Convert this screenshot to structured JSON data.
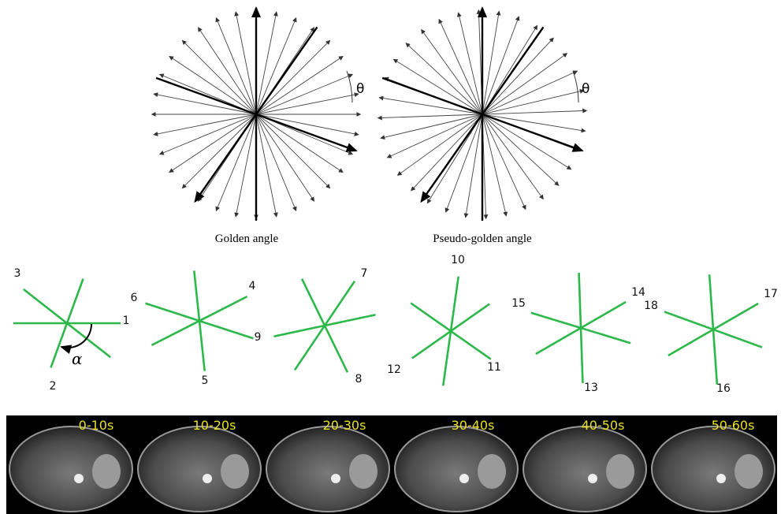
{
  "panels": [
    {
      "theta": "θ",
      "caption": "Golden angle"
    },
    {
      "theta": "θ",
      "caption": "Pseudo-golden angle"
    }
  ],
  "spoke_labels": [
    "1",
    "2",
    "3",
    "4",
    "5",
    "6",
    "7",
    "8",
    "9",
    "10",
    "11",
    "12",
    "13",
    "14",
    "15",
    "16",
    "17",
    "18"
  ],
  "alpha": "α",
  "time_labels": [
    "0-10s",
    "10-20s",
    "20-30s",
    "30-40s",
    "40-50s",
    "50-60s"
  ]
}
